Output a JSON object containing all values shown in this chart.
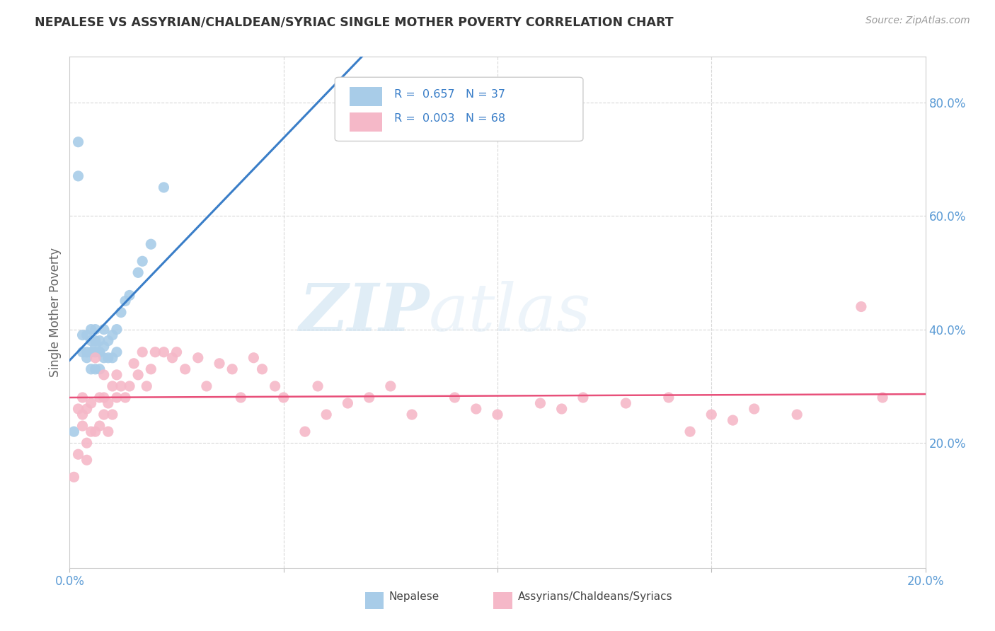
{
  "title": "NEPALESE VS ASSYRIAN/CHALDEAN/SYRIAC SINGLE MOTHER POVERTY CORRELATION CHART",
  "source": "Source: ZipAtlas.com",
  "ylabel": "Single Mother Poverty",
  "xlim": [
    0.0,
    0.2
  ],
  "ylim": [
    -0.02,
    0.88
  ],
  "plot_ylim": [
    0.0,
    0.86
  ],
  "yticks_right": [
    0.2,
    0.4,
    0.6,
    0.8
  ],
  "ytick_right_labels": [
    "20.0%",
    "40.0%",
    "60.0%",
    "80.0%"
  ],
  "legend_r1": "R =  0.657",
  "legend_n1": "N = 37",
  "legend_r2": "R =  0.003",
  "legend_n2": "N = 68",
  "legend_label1": "Nepalese",
  "legend_label2": "Assyrians/Chaldeans/Syriacs",
  "watermark_zip": "ZIP",
  "watermark_atlas": "atlas",
  "blue_color": "#a8cce8",
  "pink_color": "#f5b8c8",
  "blue_line_color": "#3a7ec8",
  "pink_line_color": "#e8507a",
  "axis_color": "#5b9bd5",
  "nepalese_x": [
    0.001,
    0.002,
    0.002,
    0.003,
    0.003,
    0.004,
    0.004,
    0.004,
    0.005,
    0.005,
    0.005,
    0.005,
    0.006,
    0.006,
    0.006,
    0.006,
    0.006,
    0.007,
    0.007,
    0.007,
    0.007,
    0.008,
    0.008,
    0.008,
    0.009,
    0.009,
    0.01,
    0.01,
    0.011,
    0.011,
    0.012,
    0.013,
    0.014,
    0.016,
    0.017,
    0.019,
    0.022
  ],
  "nepalese_y": [
    0.22,
    0.73,
    0.67,
    0.36,
    0.39,
    0.35,
    0.36,
    0.39,
    0.33,
    0.36,
    0.38,
    0.4,
    0.33,
    0.36,
    0.37,
    0.38,
    0.4,
    0.33,
    0.36,
    0.36,
    0.38,
    0.35,
    0.37,
    0.4,
    0.35,
    0.38,
    0.35,
    0.39,
    0.36,
    0.4,
    0.43,
    0.45,
    0.46,
    0.5,
    0.52,
    0.55,
    0.65
  ],
  "assyrian_x": [
    0.001,
    0.002,
    0.002,
    0.003,
    0.003,
    0.003,
    0.004,
    0.004,
    0.004,
    0.005,
    0.005,
    0.006,
    0.006,
    0.007,
    0.007,
    0.008,
    0.008,
    0.008,
    0.009,
    0.009,
    0.01,
    0.01,
    0.011,
    0.011,
    0.012,
    0.013,
    0.014,
    0.015,
    0.016,
    0.017,
    0.018,
    0.019,
    0.02,
    0.022,
    0.024,
    0.025,
    0.027,
    0.03,
    0.032,
    0.035,
    0.038,
    0.04,
    0.043,
    0.045,
    0.048,
    0.05,
    0.055,
    0.058,
    0.06,
    0.065,
    0.07,
    0.075,
    0.08,
    0.09,
    0.095,
    0.1,
    0.11,
    0.115,
    0.12,
    0.13,
    0.14,
    0.145,
    0.15,
    0.155,
    0.16,
    0.17,
    0.185,
    0.19
  ],
  "assyrian_y": [
    0.14,
    0.18,
    0.26,
    0.23,
    0.25,
    0.28,
    0.17,
    0.2,
    0.26,
    0.22,
    0.27,
    0.22,
    0.35,
    0.23,
    0.28,
    0.25,
    0.28,
    0.32,
    0.22,
    0.27,
    0.25,
    0.3,
    0.28,
    0.32,
    0.3,
    0.28,
    0.3,
    0.34,
    0.32,
    0.36,
    0.3,
    0.33,
    0.36,
    0.36,
    0.35,
    0.36,
    0.33,
    0.35,
    0.3,
    0.34,
    0.33,
    0.28,
    0.35,
    0.33,
    0.3,
    0.28,
    0.22,
    0.3,
    0.25,
    0.27,
    0.28,
    0.3,
    0.25,
    0.28,
    0.26,
    0.25,
    0.27,
    0.26,
    0.28,
    0.27,
    0.28,
    0.22,
    0.25,
    0.24,
    0.26,
    0.25,
    0.44,
    0.28
  ]
}
